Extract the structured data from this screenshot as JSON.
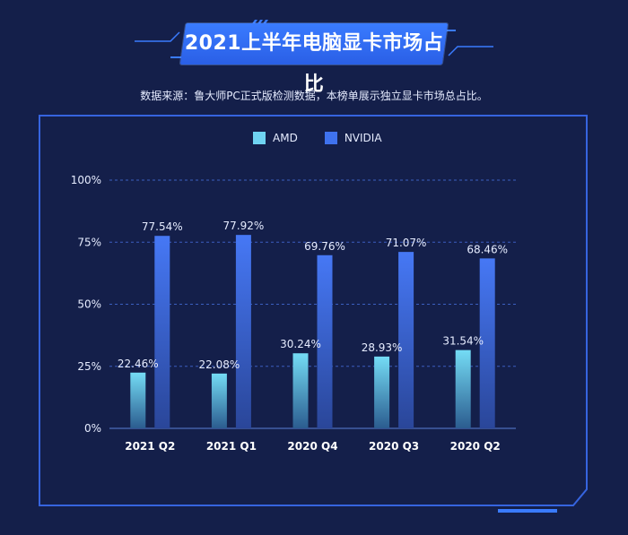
{
  "title": "2021上半年电脑显卡市场占比",
  "source_note": "数据来源：鲁大师PC正式版检测数据，本榜单展示独立显卡市场总占比。",
  "colors": {
    "background": "#141f4a",
    "accent": "#3a7bff",
    "amd": "#6fd3f2",
    "nvidia": "#3f72ee",
    "grid": "#3b5fbf",
    "text": "#e6ecff"
  },
  "chart_data": {
    "type": "bar",
    "categories": [
      "2021 Q2",
      "2021 Q1",
      "2020 Q4",
      "2020 Q3",
      "2020 Q2"
    ],
    "series": [
      {
        "name": "AMD",
        "values": [
          22.46,
          22.08,
          30.24,
          28.93,
          31.54
        ],
        "labels": [
          "22.46%",
          "22.08%",
          "30.24%",
          "28.93%",
          "31.54%"
        ]
      },
      {
        "name": "NVIDIA",
        "values": [
          77.54,
          77.92,
          69.76,
          71.07,
          68.46
        ],
        "labels": [
          "77.54%",
          "77.92%",
          "69.76%",
          "71.07%",
          "68.46%"
        ]
      }
    ],
    "ylim": [
      0,
      100
    ],
    "yticks": [
      "0%",
      "25%",
      "50%",
      "75%",
      "100%"
    ],
    "grid": true,
    "legend_position": "top-center",
    "xlabel": "",
    "ylabel": ""
  }
}
